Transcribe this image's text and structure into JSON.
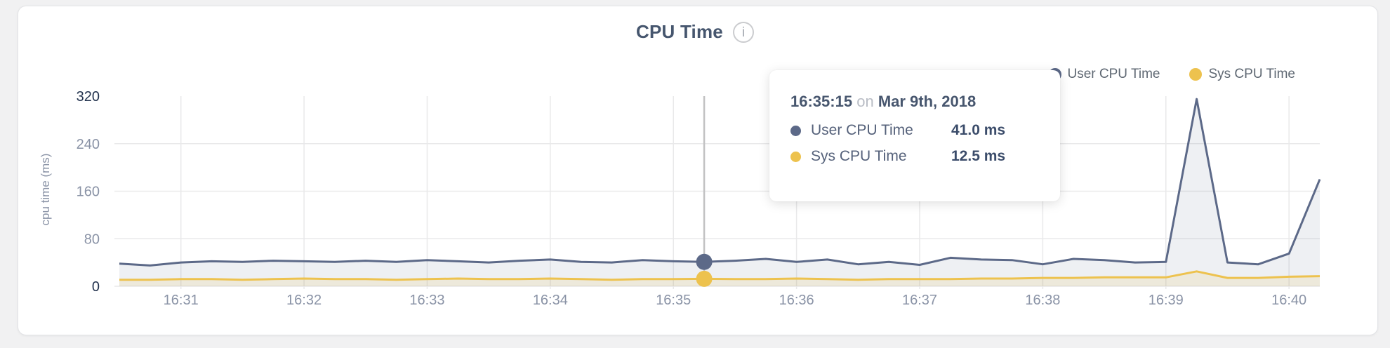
{
  "header": {
    "title": "CPU Time",
    "info_glyph": "i"
  },
  "legend": {
    "items": [
      {
        "label": "User CPU Time"
      },
      {
        "label": "Sys CPU Time"
      }
    ]
  },
  "tooltip": {
    "time": "16:35:15",
    "connector": "on",
    "date": "Mar 9th, 2018",
    "rows": [
      {
        "label": "User CPU Time",
        "value": "41.0 ms"
      },
      {
        "label": "Sys CPU Time",
        "value": "12.5 ms"
      }
    ]
  },
  "chart_data": {
    "type": "area",
    "title": "CPU Time",
    "xlabel": "",
    "ylabel": "cpu time (ms)",
    "ylim": [
      0,
      320
    ],
    "yticks": [
      0,
      80,
      160,
      240,
      320
    ],
    "grid": true,
    "legend_position": "top-right",
    "x_start": "16:30:30",
    "x_interval_seconds": 15,
    "xticks": [
      "16:31",
      "16:32",
      "16:33",
      "16:34",
      "16:35",
      "16:36",
      "16:37",
      "16:38",
      "16:39",
      "16:40"
    ],
    "series": [
      {
        "name": "User CPU Time",
        "color": "#5c6988",
        "fill": "rgba(92,105,136,0.10)",
        "values": [
          38,
          35,
          40,
          42,
          41,
          43,
          42,
          41,
          43,
          41,
          44,
          42,
          40,
          43,
          45,
          41,
          40,
          44,
          42,
          41,
          43,
          46,
          41,
          45,
          37,
          41,
          36,
          48,
          45,
          44,
          37,
          46,
          44,
          40,
          41,
          315,
          40,
          37,
          55,
          180
        ]
      },
      {
        "name": "Sys CPU Time",
        "color": "#edc24e",
        "fill": "rgba(237,194,78,0.14)",
        "values": [
          11,
          11,
          12,
          12,
          11,
          12,
          13,
          12,
          12,
          11,
          12,
          13,
          12,
          12,
          13,
          12,
          11,
          12,
          12,
          12.5,
          12,
          12,
          13,
          12,
          11,
          12,
          12,
          12,
          13,
          13,
          14,
          14,
          15,
          15,
          15,
          25,
          14,
          14,
          16,
          17
        ]
      }
    ],
    "hover": {
      "index": 19,
      "time": "16:35:15",
      "date": "Mar 9th, 2018",
      "values": [
        "41.0 ms",
        "12.5 ms"
      ]
    },
    "colors": {
      "grid": "#e9e9ea",
      "hover_line": "#c2c2c3",
      "tick_label": "#8a93a6",
      "tick_label_emphasis": "#24344f",
      "title": "#46566e"
    }
  }
}
